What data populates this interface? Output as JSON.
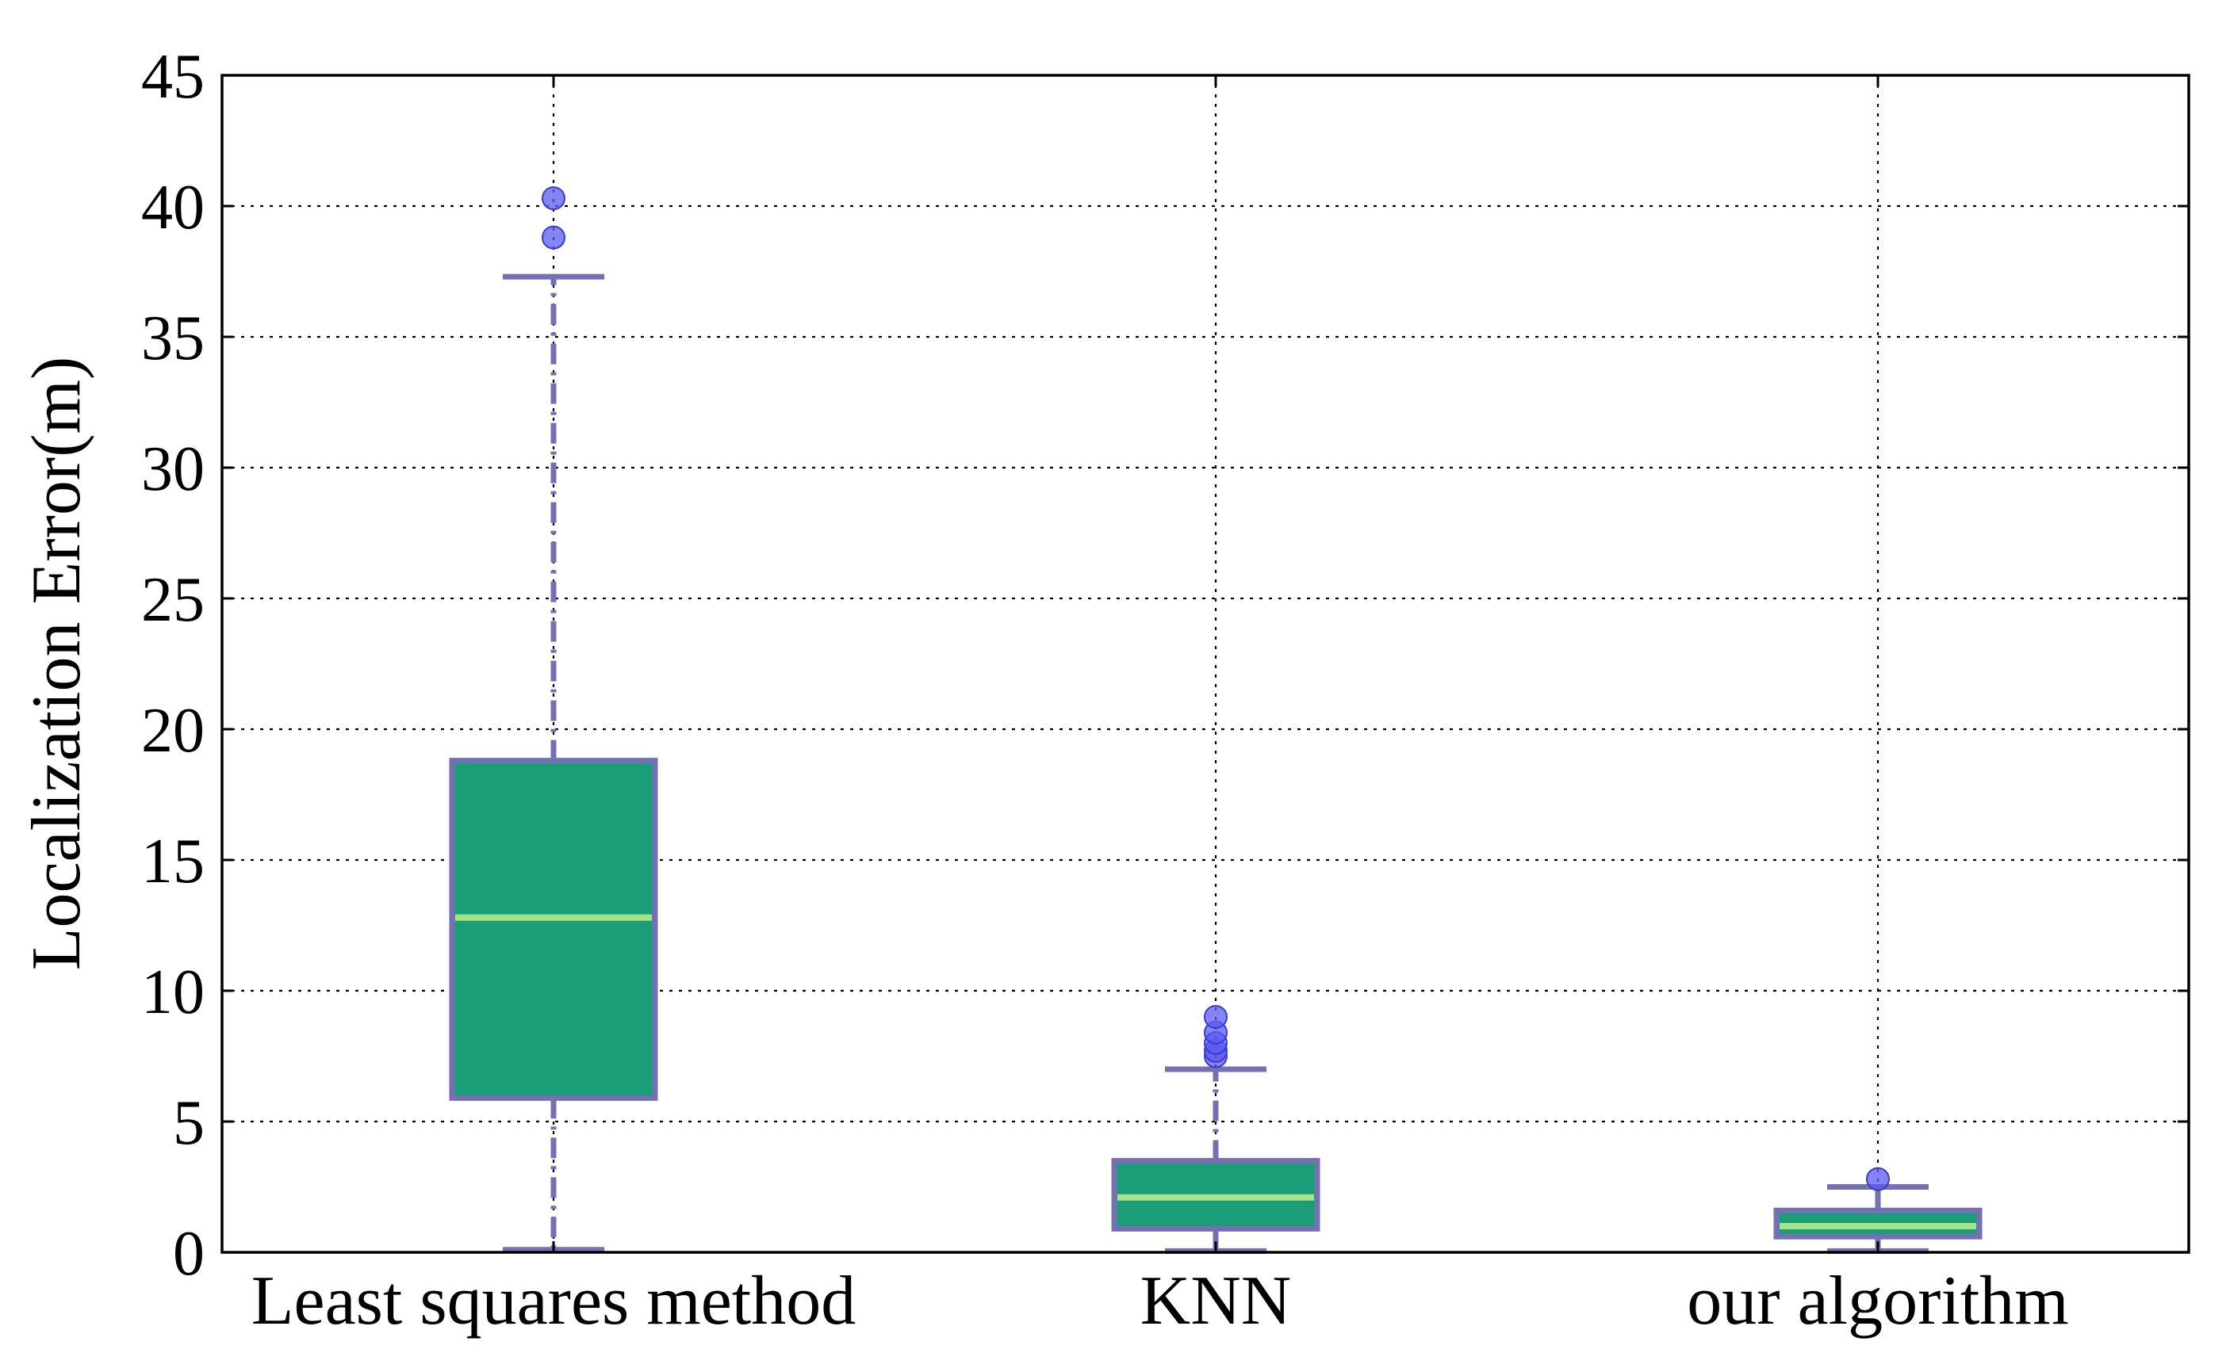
{
  "chart_data": {
    "type": "box",
    "ylabel": "Localization Error(m)",
    "xlabel": "",
    "ylim": [
      0,
      45
    ],
    "yticks": [
      0,
      5,
      10,
      15,
      20,
      25,
      30,
      35,
      40,
      45
    ],
    "grid": true,
    "categories": [
      "Least squares method",
      "KNN",
      "our algorithm"
    ],
    "boxes": [
      {
        "category": "Least squares method",
        "whisker_low": 0.1,
        "q1": 5.9,
        "median": 12.8,
        "q3": 18.8,
        "whisker_high": 37.3,
        "outliers": [
          38.8,
          40.3
        ]
      },
      {
        "category": "KNN",
        "whisker_low": 0.05,
        "q1": 0.9,
        "median": 2.1,
        "q3": 3.5,
        "whisker_high": 7.0,
        "outliers": [
          7.5,
          7.7,
          8.0,
          8.4,
          9.0
        ]
      },
      {
        "category": "our algorithm",
        "whisker_low": 0.05,
        "q1": 0.6,
        "median": 1.0,
        "q3": 1.6,
        "whisker_high": 2.5,
        "outliers": [
          2.8
        ]
      }
    ],
    "colors": {
      "box_fill": "#1b9e77",
      "box_edge": "#7570b3",
      "median": "#a6e389",
      "whisker": "#7570b3",
      "outlier": "#5b5bf0"
    }
  }
}
